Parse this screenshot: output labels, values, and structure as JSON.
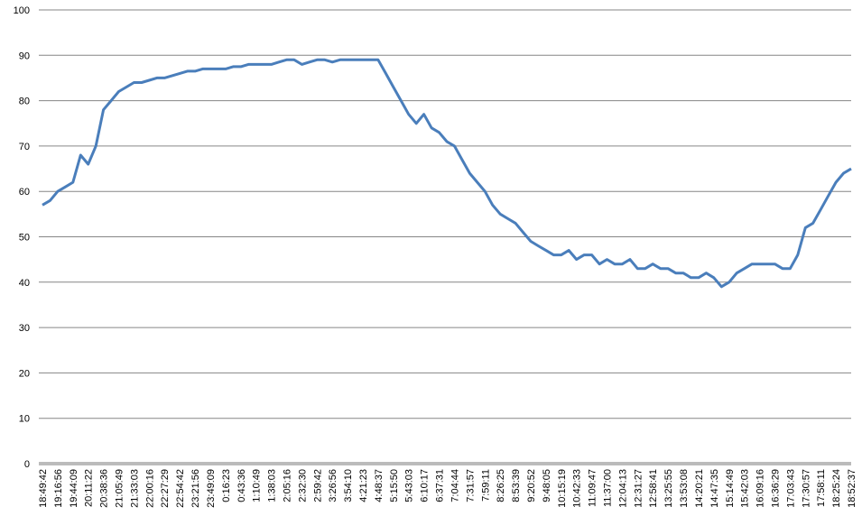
{
  "chart_data": {
    "type": "line",
    "categories": [
      "18:49:42",
      null,
      "19:16:56",
      null,
      "19:44:09",
      null,
      "20:11:22",
      null,
      "20:38:36",
      null,
      "21:05:49",
      null,
      "21:33:03",
      null,
      "22:00:16",
      null,
      "22:27:29",
      null,
      "22:54:42",
      null,
      "23:21:56",
      null,
      "23:49:09",
      null,
      "0:16:23",
      null,
      "0:43:36",
      null,
      "1:10:49",
      null,
      "1:38:03",
      null,
      "2:05:16",
      null,
      "2:32:30",
      null,
      "2:59:42",
      null,
      "3:26:56",
      null,
      "3:54:10",
      null,
      "4:21:23",
      null,
      "4:48:37",
      null,
      "5:15:50",
      null,
      "5:43:03",
      null,
      "6:10:17",
      null,
      "6:37:31",
      null,
      "7:04:44",
      null,
      "7:31:57",
      null,
      "7:59:11",
      null,
      "8:26:25",
      null,
      "8:53:39",
      null,
      "9:20:52",
      null,
      "9:48:05",
      null,
      "10:15:19",
      null,
      "10:42:33",
      null,
      "11:09:47",
      null,
      "11:37:00",
      null,
      "12:04:13",
      null,
      "12:31:27",
      null,
      "12:58:41",
      null,
      "13:25:55",
      null,
      "13:53:08",
      null,
      "14:20:21",
      null,
      "14:47:35",
      null,
      "15:14:49",
      null,
      "15:42:03",
      null,
      "16:09:16",
      null,
      "16:36:29",
      null,
      "17:03:43",
      null,
      "17:30:57",
      null,
      "17:58:11",
      null,
      "18:25:24",
      null,
      "18:52:37"
    ],
    "series": [
      {
        "color": "#4a7ebb",
        "values": [
          57,
          58,
          60,
          61,
          62,
          68,
          66,
          70,
          78,
          80,
          82,
          83,
          84,
          84,
          84.5,
          85,
          85,
          85.5,
          86,
          86.5,
          86.5,
          87,
          87,
          87,
          87,
          87.5,
          87.5,
          88,
          88,
          88,
          88,
          88.5,
          89,
          89,
          88,
          88.5,
          89,
          89,
          88.5,
          89,
          89,
          89,
          89,
          89,
          89,
          86,
          83,
          80,
          77,
          75,
          77,
          74,
          73,
          71,
          70,
          67,
          64,
          62,
          60,
          57,
          55,
          54,
          53,
          51,
          49,
          48,
          47,
          46,
          46,
          47,
          45,
          46,
          46,
          44,
          45,
          44,
          44,
          45,
          43,
          43,
          44,
          43,
          43,
          42,
          42,
          41,
          41,
          42,
          41,
          39,
          40,
          42,
          43,
          44,
          44,
          44,
          44,
          43,
          43,
          46,
          52,
          53,
          56,
          59,
          62,
          64,
          65
        ]
      }
    ],
    "ylim": [
      0,
      100
    ],
    "yticks": [
      0,
      10,
      20,
      30,
      40,
      50,
      60,
      70,
      80,
      90,
      100
    ],
    "grid": true
  }
}
